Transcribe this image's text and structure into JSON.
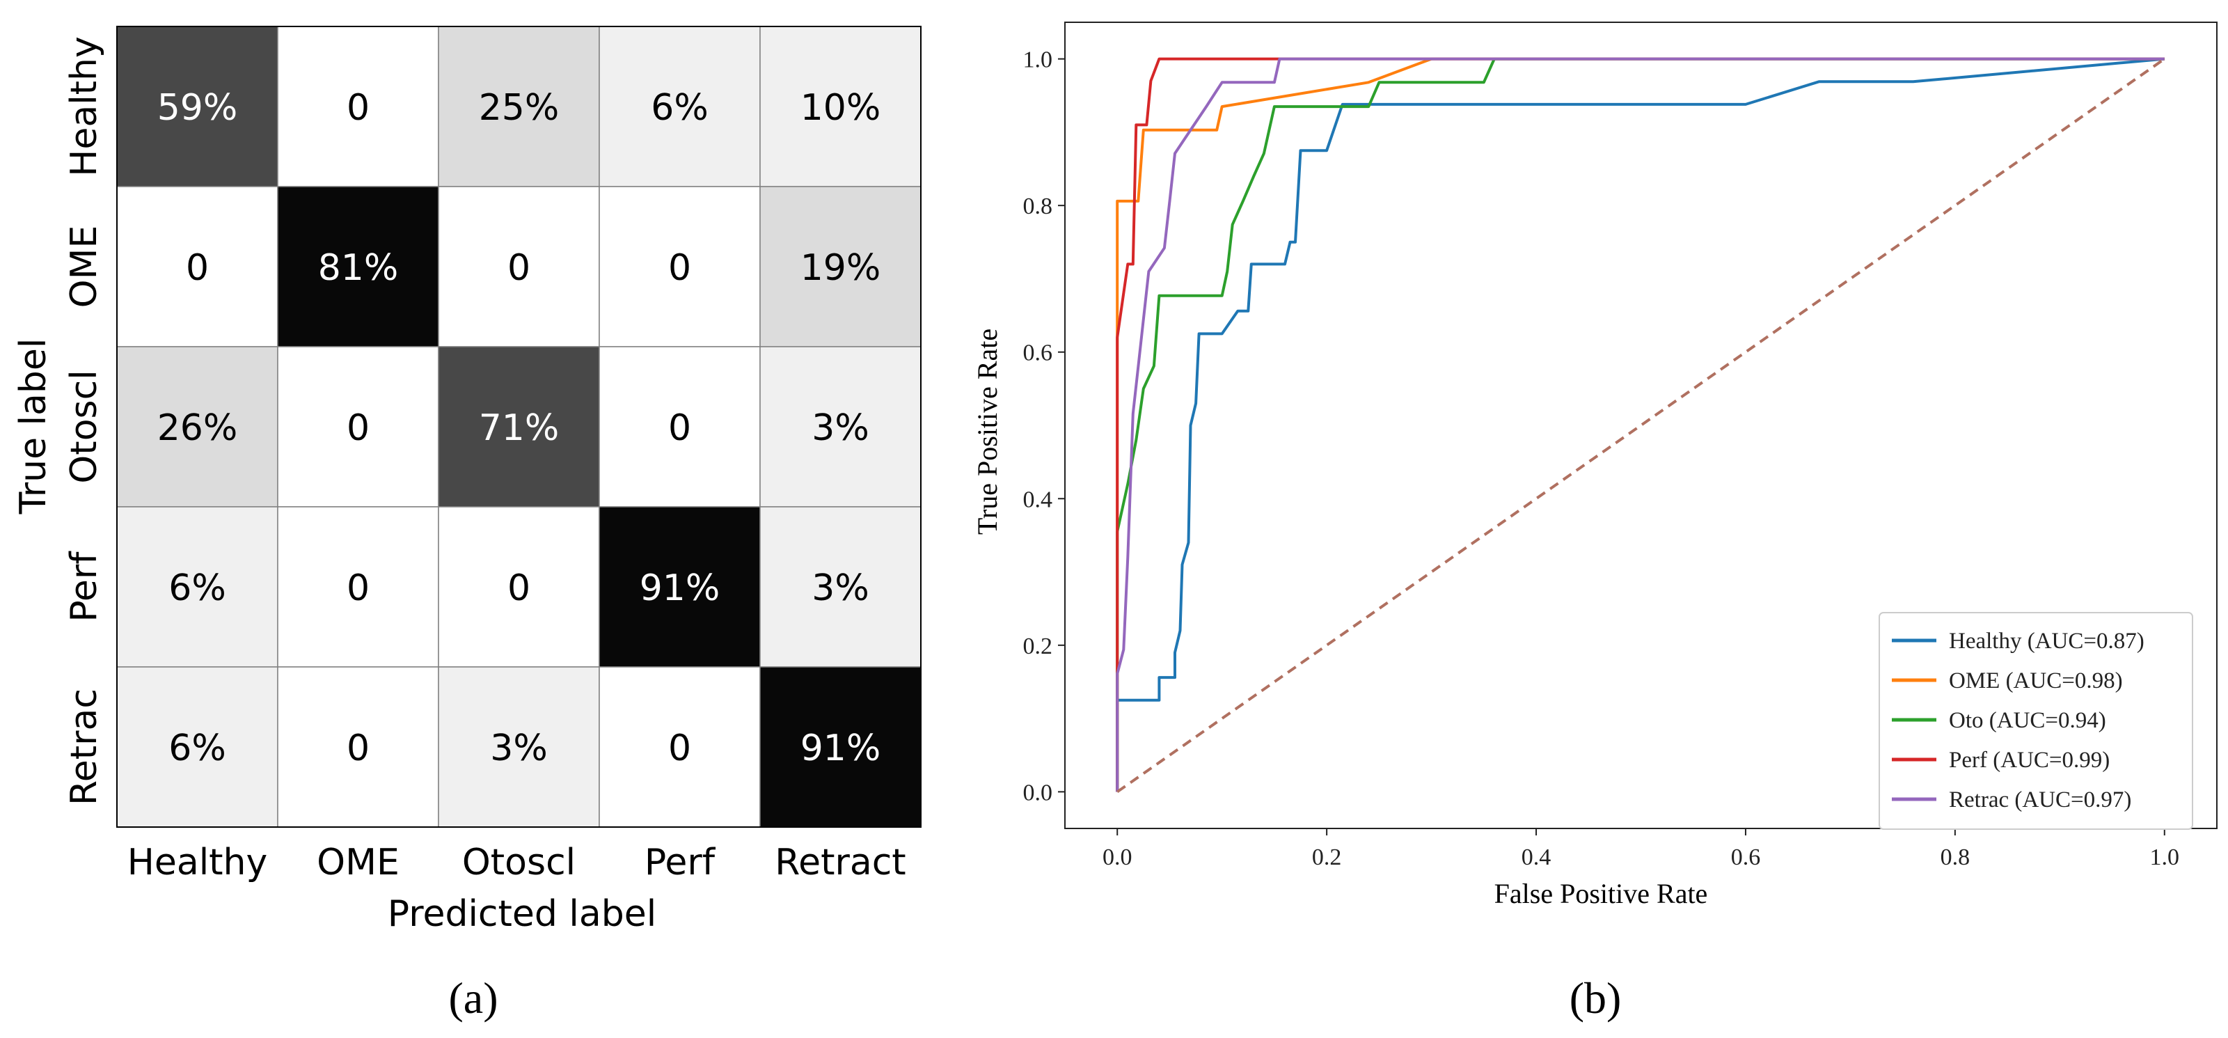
{
  "panel_a": {
    "caption": "(a)",
    "chart_data": {
      "type": "heatmap",
      "title": "",
      "xlabel": "Predicted label",
      "ylabel": "True label",
      "x_categories": [
        "Healthy",
        "OME",
        "Otoscl",
        "Perf",
        "Retract"
      ],
      "y_categories": [
        "Healthy",
        "OME",
        "Otoscl",
        "Perf",
        "Retrac"
      ],
      "cell_labels": [
        [
          "59%",
          "0",
          "25%",
          "6%",
          "10%"
        ],
        [
          "0",
          "81%",
          "0",
          "0",
          "19%"
        ],
        [
          "26%",
          "0",
          "71%",
          "0",
          "3%"
        ],
        [
          "6%",
          "0",
          "0",
          "91%",
          "3%"
        ],
        [
          "6%",
          "0",
          "3%",
          "0",
          "91%"
        ]
      ],
      "values": [
        [
          59,
          0,
          25,
          6,
          10
        ],
        [
          0,
          81,
          0,
          0,
          19
        ],
        [
          26,
          0,
          71,
          0,
          3
        ],
        [
          6,
          0,
          0,
          91,
          3
        ],
        [
          6,
          0,
          3,
          0,
          91
        ]
      ],
      "colormap": "Greys"
    }
  },
  "panel_b": {
    "caption": "(b)",
    "chart_data": {
      "type": "line",
      "title": "",
      "xlabel": "False Positive Rate",
      "ylabel": "True Positive Rate",
      "xlim": [
        -0.05,
        1.05
      ],
      "ylim": [
        -0.05,
        1.05
      ],
      "xticks": [
        0.0,
        0.2,
        0.4,
        0.6,
        0.8,
        1.0
      ],
      "yticks": [
        0.0,
        0.2,
        0.4,
        0.6,
        0.8,
        1.0
      ],
      "tick_labels_x": [
        "0.0",
        "0.2",
        "0.4",
        "0.6",
        "0.8",
        "1.0"
      ],
      "tick_labels_y": [
        "0.0",
        "0.2",
        "0.4",
        "0.6",
        "0.8",
        "1.0"
      ],
      "legend_position": "lower-right",
      "series": [
        {
          "name": "Healthy (AUC=0.87)",
          "color": "#1f77b4",
          "points": [
            [
              0,
              0
            ],
            [
              0,
              0.125
            ],
            [
              0.04,
              0.125
            ],
            [
              0.04,
              0.156
            ],
            [
              0.055,
              0.156
            ],
            [
              0.055,
              0.19
            ],
            [
              0.06,
              0.22
            ],
            [
              0.062,
              0.31
            ],
            [
              0.068,
              0.34
            ],
            [
              0.07,
              0.5
            ],
            [
              0.075,
              0.53
            ],
            [
              0.078,
              0.625
            ],
            [
              0.1,
              0.625
            ],
            [
              0.115,
              0.656
            ],
            [
              0.125,
              0.656
            ],
            [
              0.128,
              0.72
            ],
            [
              0.16,
              0.72
            ],
            [
              0.165,
              0.75
            ],
            [
              0.17,
              0.75
            ],
            [
              0.175,
              0.875
            ],
            [
              0.2,
              0.875
            ],
            [
              0.215,
              0.938
            ],
            [
              0.6,
              0.938
            ],
            [
              0.67,
              0.969
            ],
            [
              0.76,
              0.969
            ],
            [
              1.0,
              1.0
            ]
          ]
        },
        {
          "name": "OME (AUC=0.98)",
          "color": "#ff7f0e",
          "points": [
            [
              0,
              0
            ],
            [
              0,
              0.806
            ],
            [
              0.02,
              0.806
            ],
            [
              0.025,
              0.903
            ],
            [
              0.095,
              0.903
            ],
            [
              0.1,
              0.935
            ],
            [
              0.24,
              0.968
            ],
            [
              0.3,
              1.0
            ],
            [
              1.0,
              1.0
            ]
          ]
        },
        {
          "name": "Oto (AUC=0.94)",
          "color": "#2ca02c",
          "points": [
            [
              0,
              0
            ],
            [
              0,
              0.355
            ],
            [
              0.01,
              0.42
            ],
            [
              0.018,
              0.48
            ],
            [
              0.025,
              0.55
            ],
            [
              0.035,
              0.581
            ],
            [
              0.04,
              0.677
            ],
            [
              0.1,
              0.677
            ],
            [
              0.105,
              0.71
            ],
            [
              0.11,
              0.774
            ],
            [
              0.12,
              0.806
            ],
            [
              0.13,
              0.839
            ],
            [
              0.14,
              0.871
            ],
            [
              0.15,
              0.935
            ],
            [
              0.24,
              0.935
            ],
            [
              0.25,
              0.968
            ],
            [
              0.35,
              0.968
            ],
            [
              0.36,
              1.0
            ],
            [
              1.0,
              1.0
            ]
          ]
        },
        {
          "name": "Perf (AUC=0.99)",
          "color": "#d62728",
          "points": [
            [
              0,
              0
            ],
            [
              0,
              0.62
            ],
            [
              0.01,
              0.72
            ],
            [
              0.015,
              0.72
            ],
            [
              0.018,
              0.91
            ],
            [
              0.028,
              0.91
            ],
            [
              0.032,
              0.97
            ],
            [
              0.04,
              1.0
            ],
            [
              1.0,
              1.0
            ]
          ]
        },
        {
          "name": "Retrac (AUC=0.97)",
          "color": "#9467bd",
          "points": [
            [
              0,
              0
            ],
            [
              0,
              0.161
            ],
            [
              0.006,
              0.194
            ],
            [
              0.01,
              0.32
            ],
            [
              0.015,
              0.516
            ],
            [
              0.02,
              0.58
            ],
            [
              0.03,
              0.71
            ],
            [
              0.045,
              0.742
            ],
            [
              0.05,
              0.806
            ],
            [
              0.055,
              0.871
            ],
            [
              0.07,
              0.903
            ],
            [
              0.085,
              0.935
            ],
            [
              0.1,
              0.968
            ],
            [
              0.15,
              0.968
            ],
            [
              0.155,
              1.0
            ],
            [
              1.0,
              1.0
            ]
          ]
        },
        {
          "name": "",
          "color": "#b07060",
          "dashed": true,
          "points": [
            [
              0,
              0
            ],
            [
              1,
              1
            ]
          ]
        }
      ]
    }
  }
}
